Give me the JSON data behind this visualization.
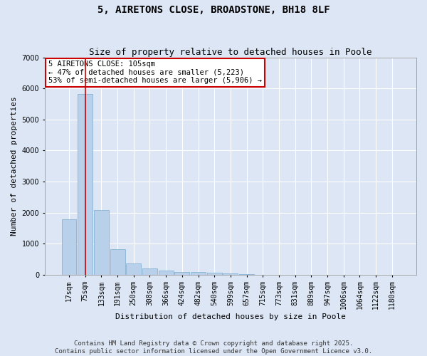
{
  "title": "5, AIRETONS CLOSE, BROADSTONE, BH18 8LF",
  "subtitle": "Size of property relative to detached houses in Poole",
  "xlabel": "Distribution of detached houses by size in Poole",
  "ylabel": "Number of detached properties",
  "categories": [
    "17sqm",
    "75sqm",
    "133sqm",
    "191sqm",
    "250sqm",
    "308sqm",
    "366sqm",
    "424sqm",
    "482sqm",
    "540sqm",
    "599sqm",
    "657sqm",
    "715sqm",
    "773sqm",
    "831sqm",
    "889sqm",
    "947sqm",
    "1006sqm",
    "1064sqm",
    "1122sqm",
    "1180sqm"
  ],
  "values": [
    1780,
    5820,
    2080,
    820,
    360,
    205,
    120,
    90,
    75,
    55,
    40,
    15,
    0,
    0,
    0,
    0,
    0,
    0,
    0,
    0,
    0
  ],
  "bar_color": "#b8d0ea",
  "bar_edge_color": "#7aabcf",
  "vline_color": "#cc0000",
  "vline_x_index": 1,
  "annotation_text": "5 AIRETONS CLOSE: 105sqm\n← 47% of detached houses are smaller (5,223)\n53% of semi-detached houses are larger (5,906) →",
  "annotation_box_facecolor": "#ffffff",
  "annotation_box_edgecolor": "#cc0000",
  "ylim": [
    0,
    7000
  ],
  "yticks": [
    0,
    1000,
    2000,
    3000,
    4000,
    5000,
    6000,
    7000
  ],
  "background_color": "#dce6f5",
  "plot_bg_color": "#dce6f5",
  "grid_color": "#ffffff",
  "footer_line1": "Contains HM Land Registry data © Crown copyright and database right 2025.",
  "footer_line2": "Contains public sector information licensed under the Open Government Licence v3.0.",
  "title_fontsize": 10,
  "subtitle_fontsize": 9,
  "axis_label_fontsize": 8,
  "tick_fontsize": 7,
  "annotation_fontsize": 7.5,
  "footer_fontsize": 6.5
}
